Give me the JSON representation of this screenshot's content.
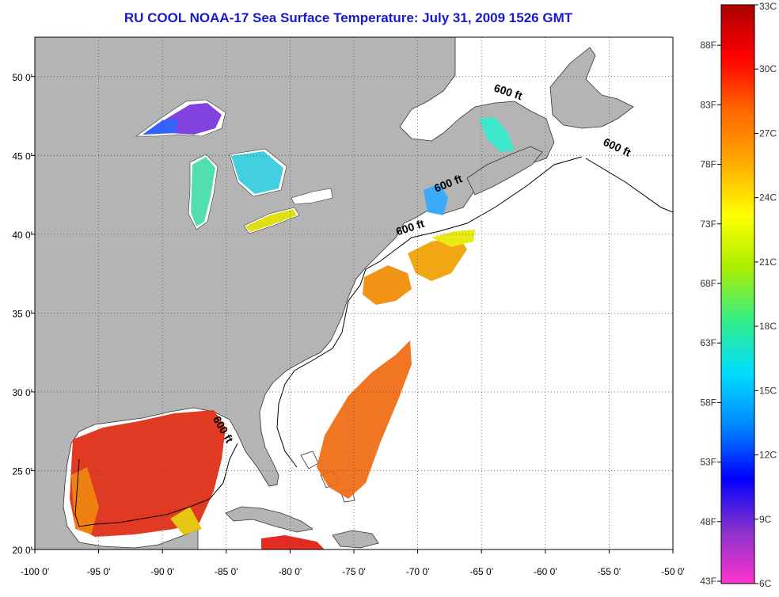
{
  "title": "RU COOL  NOAA-17  Sea Surface Temperature:  July 31, 2009 1526 GMT",
  "map": {
    "lon_range": [
      -100,
      -50
    ],
    "lat_range": [
      20,
      52.5
    ],
    "lon_ticks": [
      "-100 0'",
      "-95 0'",
      "-90 0'",
      "-85 0'",
      "-80 0'",
      "-75 0'",
      "-70 0'",
      "-65 0'",
      "-60 0'",
      "-55 0'",
      "-50 0'"
    ],
    "lat_ticks": [
      "20 0'",
      "25 0'",
      "30 0'",
      "35 0'",
      "40 0'",
      "45 0'",
      "50 0'"
    ],
    "grid": "dotted",
    "land_color": "#b4b4b4",
    "water_color": "#ffffff",
    "isobath_label": "600 ft",
    "isobath_labels": [
      {
        "lon": -63,
        "lat": 48.8,
        "text": "600 ft"
      },
      {
        "lon": -54.5,
        "lat": 45.3,
        "text": "600 ft"
      },
      {
        "lon": -67.5,
        "lat": 43.0,
        "text": "600 ft"
      },
      {
        "lon": -70.5,
        "lat": 40.2,
        "text": "600 ft"
      },
      {
        "lon": -85.5,
        "lat": 27.5,
        "text": "600 ft"
      }
    ]
  },
  "colorbar": {
    "colors": [
      "#ff33cc",
      "#8833cc",
      "#0000ff",
      "#0088ff",
      "#00ddff",
      "#33ee88",
      "#aaee00",
      "#ffff00",
      "#ffaa00",
      "#ff6600",
      "#ff0000",
      "#aa0000"
    ],
    "celsius_labels": [
      "33C",
      "30C",
      "27C",
      "24C",
      "21C",
      "18C",
      "15C",
      "12C",
      "9C",
      "6C"
    ],
    "fahrenheit_labels": [
      "88F",
      "83F",
      "78F",
      "73F",
      "68F",
      "63F",
      "58F",
      "53F",
      "48F",
      "43F"
    ],
    "c_range": [
      6,
      33
    ]
  }
}
